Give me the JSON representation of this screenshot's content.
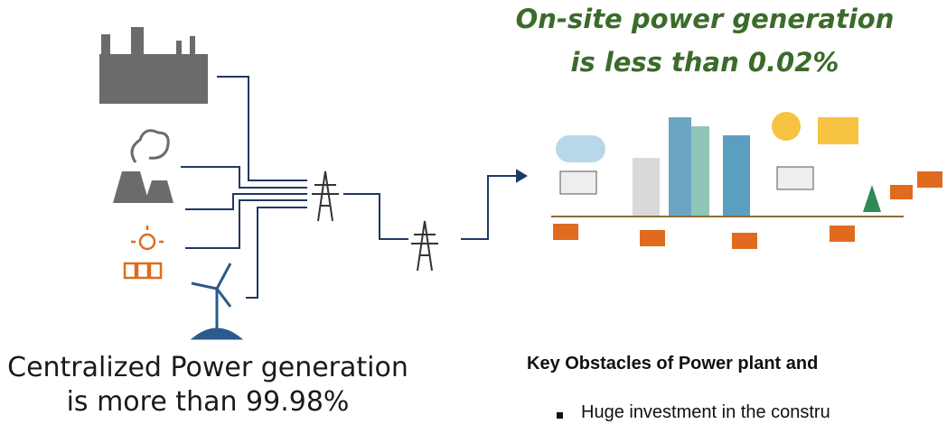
{
  "header": {
    "title_line1": "On-site power generation",
    "title_line2": "is less than 0.02%"
  },
  "centralized": {
    "line1": "Centralized Power generation",
    "line2": "is more than 99.98%"
  },
  "obstacles": {
    "heading": "Key Obstacles of Power plant and",
    "bullets": [
      "Huge investment in the constru"
    ]
  }
}
